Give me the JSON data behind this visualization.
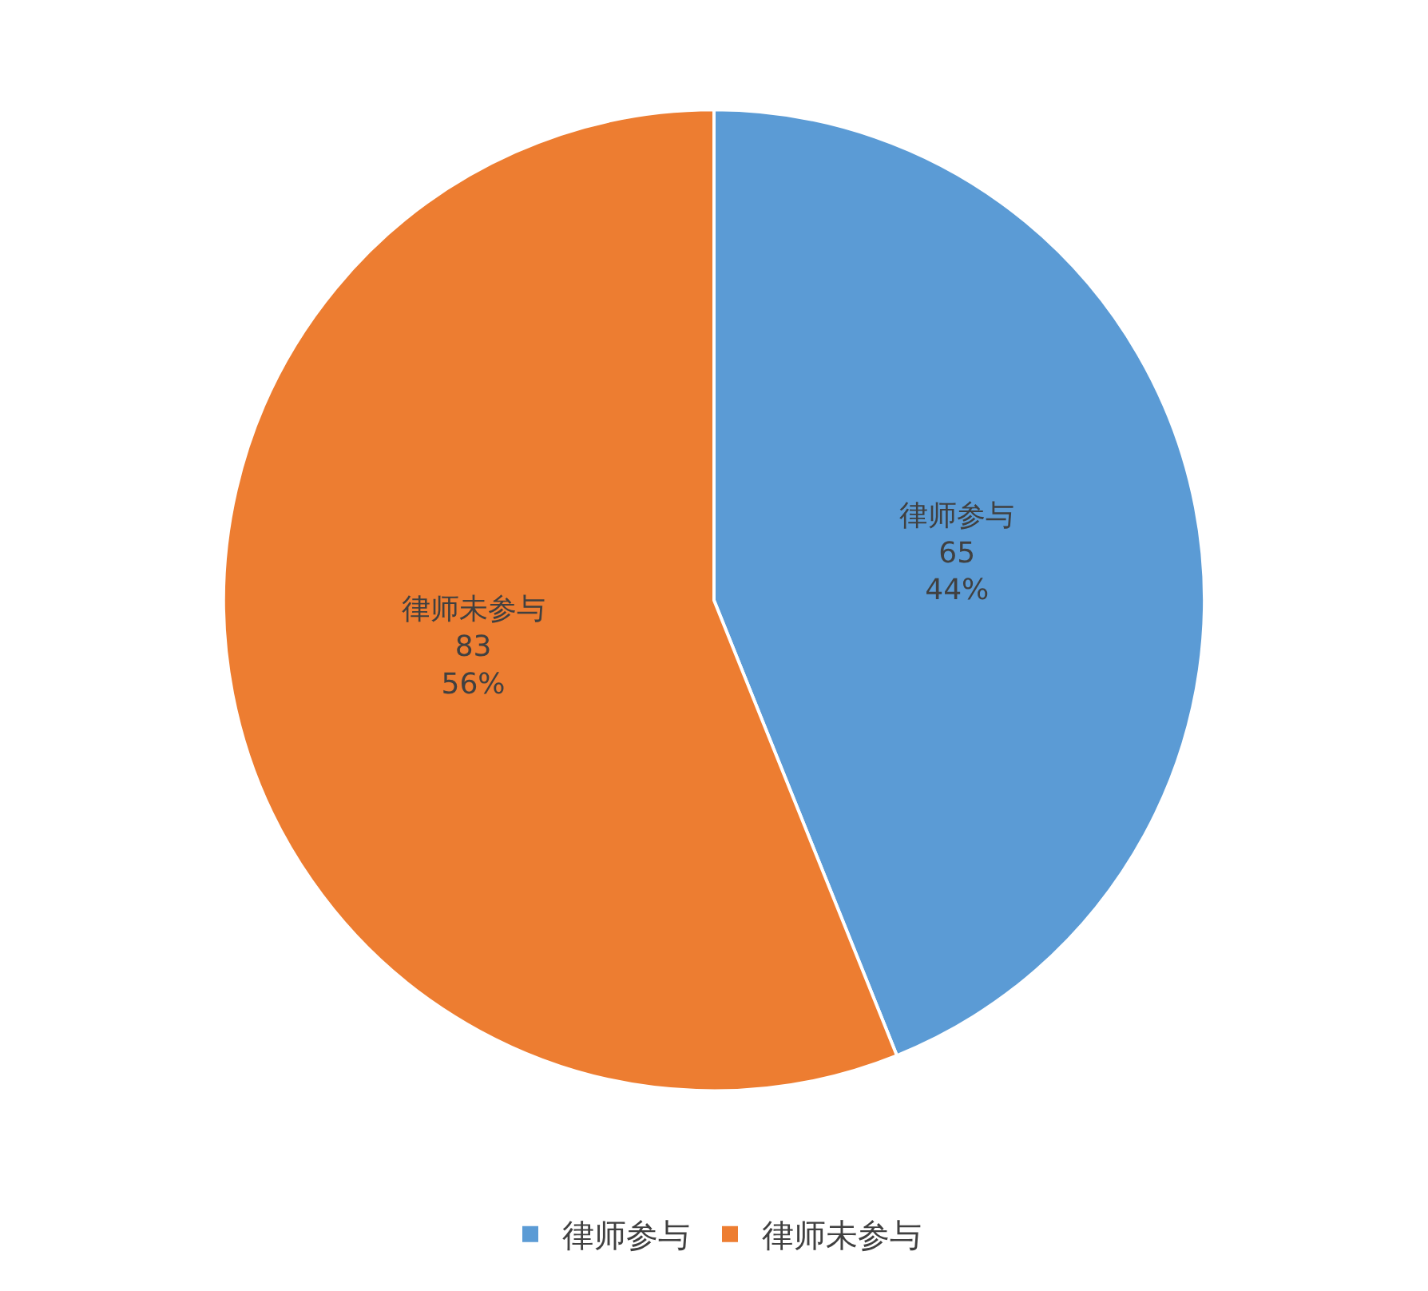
{
  "chart_data": {
    "type": "pie",
    "categories": [
      "律师参与",
      "律师未参与"
    ],
    "values": [
      65,
      83
    ],
    "colors": [
      "#5b9bd5",
      "#ed7d31"
    ],
    "value_labels": [
      "65\n44%",
      "83\n56%"
    ],
    "legend": "bottom"
  }
}
